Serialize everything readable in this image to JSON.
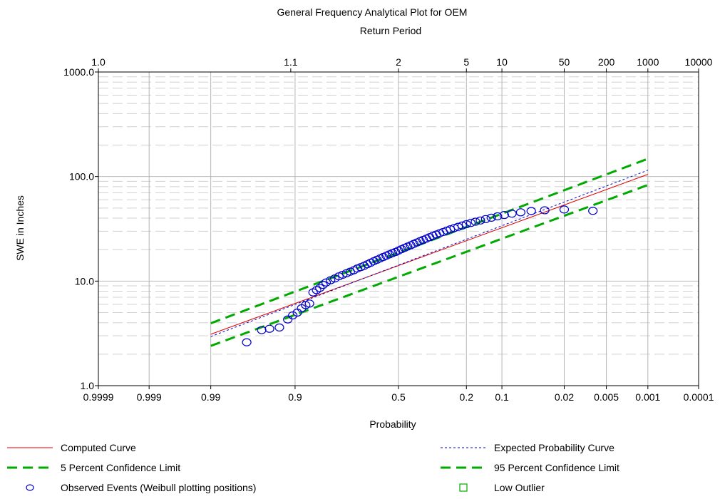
{
  "chart_data": {
    "type": "scatter",
    "title": "General Frequency Analytical Plot for OEM",
    "top_axis_label": "Return Period",
    "xlabel": "Probability",
    "ylabel": "SWE in Inches",
    "x_scale": "normal-probability",
    "y_scale": "log",
    "xlim": [
      0.9999,
      0.0001
    ],
    "ylim": [
      1.0,
      1000.0
    ],
    "grid": true,
    "legend_placement": "bottom",
    "bottom_ticks": [
      "0.9999",
      "0.999",
      "0.99",
      "0.9",
      "0.5",
      "0.2",
      "0.1",
      "0.02",
      "0.005",
      "0.001",
      "0.0001"
    ],
    "top_ticks": [
      "1.0",
      "1.1",
      "2",
      "5",
      "10",
      "50",
      "200",
      "1000",
      "10000"
    ],
    "y_ticks": [
      "1.0",
      "10.0",
      "100.0",
      "1000.0"
    ],
    "series": [
      {
        "name": "Computed Curve",
        "color": "#e00000",
        "style": "solid",
        "x": [
          0.99,
          0.001
        ],
        "y": [
          3.1,
          105
        ]
      },
      {
        "name": "Expected Probability Curve",
        "color": "#0000cc",
        "style": "dotted",
        "x": [
          0.99,
          0.001
        ],
        "y": [
          2.95,
          115
        ]
      },
      {
        "name": "5 Percent Confidence Limit",
        "color": "#00aa00",
        "style": "dashed",
        "x": [
          0.99,
          0.001
        ],
        "y": [
          3.95,
          148
        ]
      },
      {
        "name": "95 Percent Confidence Limit",
        "color": "#00aa00",
        "style": "dashed",
        "x": [
          0.99,
          0.001
        ],
        "y": [
          2.4,
          83
        ]
      },
      {
        "name": "Observed Events (Weibull plotting positions)",
        "color": "#0000cc",
        "marker": "circle",
        "x": [
          0.97,
          0.955,
          0.945,
          0.93,
          0.915,
          0.905,
          0.895,
          0.885,
          0.875,
          0.865,
          0.855,
          0.845,
          0.835,
          0.825,
          0.815,
          0.8,
          0.785,
          0.77,
          0.755,
          0.74,
          0.725,
          0.71,
          0.695,
          0.68,
          0.665,
          0.65,
          0.635,
          0.62,
          0.605,
          0.59,
          0.575,
          0.56,
          0.545,
          0.53,
          0.515,
          0.5,
          0.485,
          0.47,
          0.455,
          0.44,
          0.425,
          0.41,
          0.395,
          0.38,
          0.365,
          0.35,
          0.335,
          0.32,
          0.305,
          0.29,
          0.275,
          0.26,
          0.245,
          0.23,
          0.215,
          0.2,
          0.185,
          0.17,
          0.155,
          0.14,
          0.125,
          0.11,
          0.095,
          0.08,
          0.065,
          0.05,
          0.035,
          0.02,
          0.008
        ],
        "y": [
          2.6,
          3.4,
          3.5,
          3.6,
          4.3,
          4.7,
          5.0,
          5.5,
          5.9,
          6.1,
          7.8,
          8.2,
          8.6,
          9.2,
          9.7,
          10.2,
          10.6,
          11.1,
          11.5,
          11.9,
          12.3,
          12.7,
          13.2,
          13.6,
          14.0,
          14.5,
          15.0,
          15.5,
          16.0,
          16.5,
          17.0,
          17.5,
          18.0,
          18.5,
          19.0,
          19.6,
          20.2,
          20.8,
          21.4,
          22.0,
          22.7,
          23.4,
          24.1,
          24.8,
          25.5,
          26.3,
          27.1,
          27.9,
          28.7,
          29.5,
          30.4,
          31.3,
          32.2,
          33.1,
          34.0,
          35.0,
          36.0,
          37.0,
          38.0,
          39.2,
          40.4,
          41.6,
          42.9,
          44.2,
          45.5,
          46.8,
          47.6,
          48.4,
          47.0
        ]
      },
      {
        "name": "Low Outlier",
        "color": "#00aa00",
        "marker": "square",
        "x": [],
        "y": []
      }
    ]
  },
  "legend": [
    {
      "key": "computed",
      "label": "Computed Curve",
      "symbol": "line",
      "color": "#e00000",
      "dash": ""
    },
    {
      "key": "expected",
      "label": "Expected Probability Curve",
      "symbol": "line",
      "color": "#0000cc",
      "dash": "3,3"
    },
    {
      "key": "conf5",
      "label": "5 Percent Confidence Limit",
      "symbol": "line",
      "color": "#00aa00",
      "dash": "14,8"
    },
    {
      "key": "conf95",
      "label": "95 Percent Confidence Limit",
      "symbol": "line",
      "color": "#00aa00",
      "dash": "14,8"
    },
    {
      "key": "observed",
      "label": "Observed Events (Weibull plotting positions)",
      "symbol": "circle",
      "color": "#0000cc",
      "dash": ""
    },
    {
      "key": "outlier",
      "label": "Low Outlier",
      "symbol": "square",
      "color": "#00aa00",
      "dash": ""
    }
  ]
}
